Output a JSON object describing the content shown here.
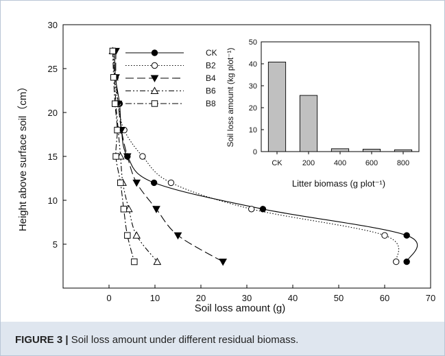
{
  "caption": {
    "label": "FIGURE 3 |",
    "text": " Soil loss amount under different residual biomass."
  },
  "colors": {
    "bar_fill": "#c0c0c0",
    "axis": "#000000",
    "caption_bg": "#dfe6ef"
  },
  "chart_data": [
    {
      "type": "line",
      "title": "",
      "xlabel": "Soil loss amount (g)",
      "ylabel": "Height above surface soil（cm）",
      "xlim": [
        -10,
        70
      ],
      "ylim": [
        0,
        30
      ],
      "xticks": [
        0,
        10,
        20,
        30,
        40,
        50,
        60,
        70
      ],
      "yticks": [
        5,
        10,
        15,
        20,
        25,
        30
      ],
      "grid": false,
      "legend_position": "top-left",
      "series": [
        {
          "name": "CK",
          "marker": "filled-circle",
          "dash": "solid",
          "points": [
            [
              1.2,
              27
            ],
            [
              1.4,
              24
            ],
            [
              2.3,
              21
            ],
            [
              2.7,
              18
            ],
            [
              4.0,
              15
            ],
            [
              9.8,
              12
            ],
            [
              33.5,
              9
            ],
            [
              64.8,
              6
            ],
            [
              64.8,
              3
            ]
          ]
        },
        {
          "name": "B2",
          "marker": "open-circle",
          "dash": "dotted",
          "points": [
            [
              1.0,
              27
            ],
            [
              1.2,
              24
            ],
            [
              2.0,
              21
            ],
            [
              3.3,
              18
            ],
            [
              7.3,
              15
            ],
            [
              13.5,
              12
            ],
            [
              31.0,
              9
            ],
            [
              60.0,
              6
            ],
            [
              62.5,
              3
            ]
          ]
        },
        {
          "name": "B4",
          "marker": "filled-triangle-down",
          "dash": "long-dash",
          "points": [
            [
              1.5,
              27
            ],
            [
              1.5,
              24
            ],
            [
              2.0,
              21
            ],
            [
              2.7,
              18
            ],
            [
              4.0,
              15
            ],
            [
              6.0,
              12
            ],
            [
              10.3,
              9
            ],
            [
              15.0,
              6
            ],
            [
              24.8,
              3
            ]
          ]
        },
        {
          "name": "B6",
          "marker": "open-triangle-up",
          "dash": "dash-dot-dot",
          "points": [
            [
              0.8,
              27
            ],
            [
              1.2,
              24
            ],
            [
              1.5,
              21
            ],
            [
              2.0,
              18
            ],
            [
              2.5,
              15
            ],
            [
              3.0,
              12
            ],
            [
              4.3,
              9
            ],
            [
              6.0,
              6
            ],
            [
              10.5,
              3
            ]
          ]
        },
        {
          "name": "B8",
          "marker": "open-square",
          "dash": "dash-dot",
          "points": [
            [
              0.8,
              27
            ],
            [
              1.0,
              24
            ],
            [
              1.3,
              21
            ],
            [
              1.8,
              18
            ],
            [
              1.5,
              15
            ],
            [
              2.5,
              12
            ],
            [
              3.2,
              9
            ],
            [
              4.0,
              6
            ],
            [
              5.5,
              3
            ]
          ]
        }
      ]
    },
    {
      "type": "bar",
      "title": "",
      "xlabel": "Litter biomass (g plot⁻¹)",
      "ylabel": "Soil loss amount (kg plot⁻¹)",
      "categories": [
        "CK",
        "200",
        "400",
        "600",
        "800"
      ],
      "values": [
        40.8,
        25.6,
        1.3,
        1.1,
        0.8
      ],
      "ylim": [
        0,
        50
      ],
      "yticks": [
        0,
        10,
        20,
        30,
        40,
        50
      ],
      "grid": false
    }
  ]
}
